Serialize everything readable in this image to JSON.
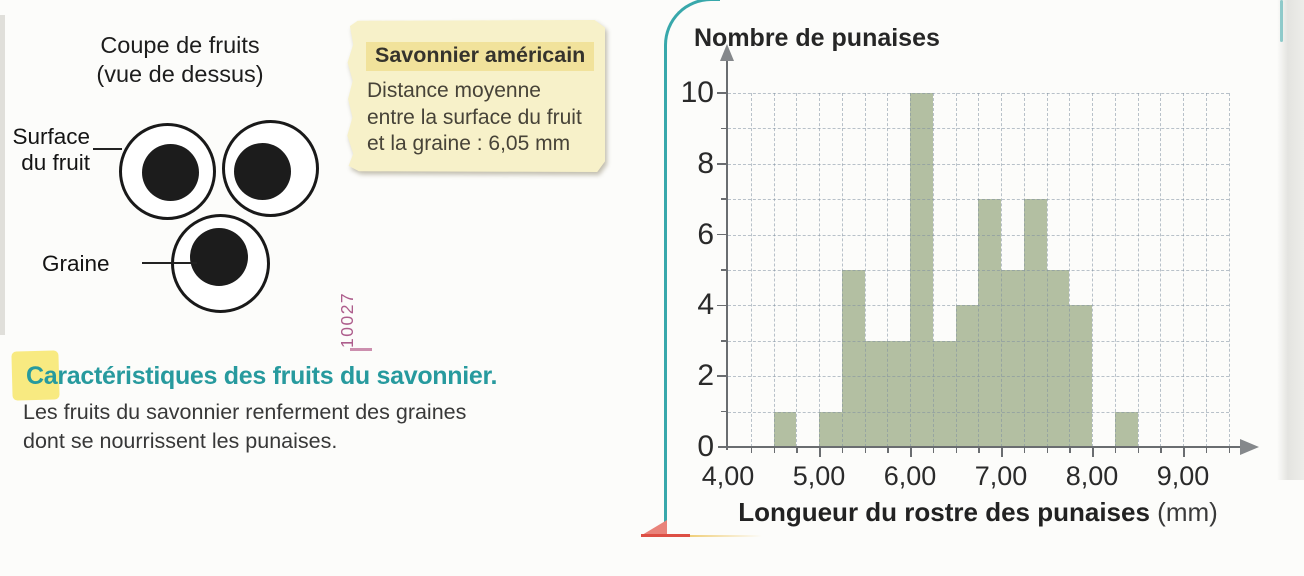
{
  "fruit_diagram": {
    "title_line1": "Coupe de fruits",
    "title_line2": "(vue de dessus)",
    "label_surface_line1": "Surface",
    "label_surface_line2": "du fruit",
    "label_graine": "Graine"
  },
  "sticky_note": {
    "header": "Savonnier américain",
    "line1": "Distance moyenne",
    "line2": "entre la surface du fruit",
    "line3": "et la graine : 6,05 mm",
    "bg_color": "#f7f1c9",
    "header_bg_color": "#f1e29b"
  },
  "code_stamp": "10027",
  "caption": {
    "heading": "Caractéristiques des fruits du savonnier.",
    "body_line1": "Les fruits du savonnier renferment des graines",
    "body_line2": "dont se nourrissent les punaises.",
    "heading_color": "#279a9e",
    "highlight_color": "#f8e97a"
  },
  "chart_data": {
    "type": "bar",
    "title": "Nombre de punaises",
    "xlabel": "Longueur du rostre des punaises",
    "xlabel_unit": "(mm)",
    "ylabel": "Nombre de punaises",
    "x_ticks": [
      4,
      5,
      6,
      7,
      8,
      9
    ],
    "x_tick_labels": [
      "4,00",
      "5,00",
      "6,00",
      "7,00",
      "8,00",
      "9,00"
    ],
    "y_ticks": [
      0,
      2,
      4,
      6,
      8,
      10
    ],
    "xlim": [
      4,
      9.5
    ],
    "ylim": [
      0,
      10
    ],
    "bin_width": 0.25,
    "grid": true,
    "bar_color": "#b3bfa2",
    "bins": [
      {
        "start": 4.5,
        "end": 4.75,
        "count": 1
      },
      {
        "start": 5.0,
        "end": 5.25,
        "count": 1
      },
      {
        "start": 5.25,
        "end": 5.5,
        "count": 5
      },
      {
        "start": 5.5,
        "end": 5.75,
        "count": 3
      },
      {
        "start": 5.75,
        "end": 6.0,
        "count": 3
      },
      {
        "start": 6.0,
        "end": 6.25,
        "count": 10
      },
      {
        "start": 6.25,
        "end": 6.5,
        "count": 3
      },
      {
        "start": 6.5,
        "end": 6.75,
        "count": 4
      },
      {
        "start": 6.75,
        "end": 7.0,
        "count": 7
      },
      {
        "start": 7.0,
        "end": 7.25,
        "count": 5
      },
      {
        "start": 7.25,
        "end": 7.5,
        "count": 7
      },
      {
        "start": 7.5,
        "end": 7.75,
        "count": 5
      },
      {
        "start": 7.75,
        "end": 8.0,
        "count": 4
      },
      {
        "start": 8.25,
        "end": 8.5,
        "count": 1
      }
    ]
  }
}
